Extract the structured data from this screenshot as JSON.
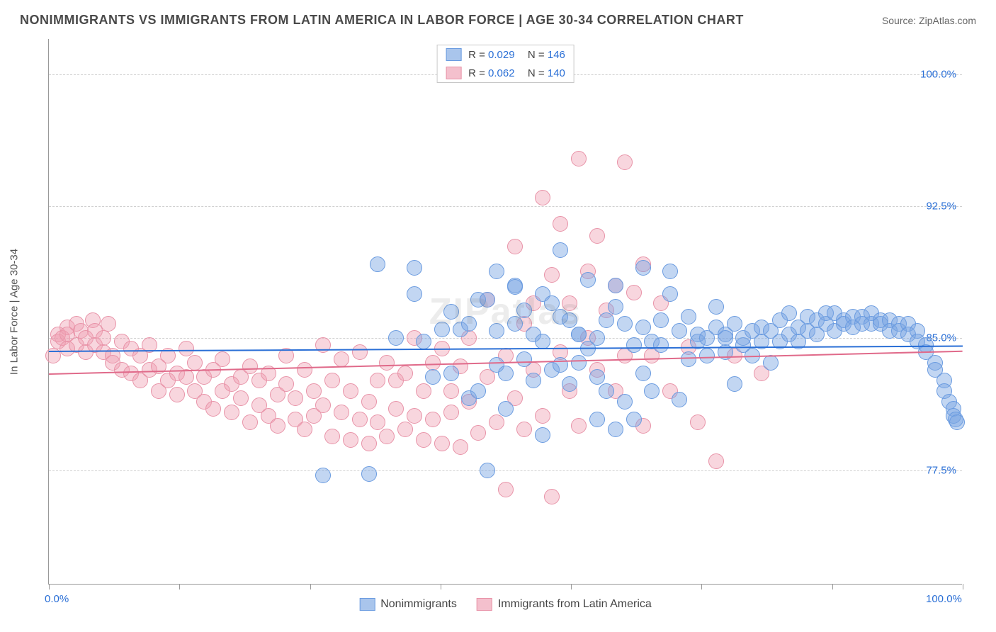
{
  "title": "NONIMMIGRANTS VS IMMIGRANTS FROM LATIN AMERICA IN LABOR FORCE | AGE 30-34 CORRELATION CHART",
  "source_label": "Source: ",
  "source_name": "ZipAtlas.com",
  "watermark": "ZIPatlas",
  "y_axis_label": "In Labor Force | Age 30-34",
  "chart": {
    "type": "scatter",
    "background_color": "#ffffff",
    "grid_color": "#d0d0d0",
    "axis_color": "#999999",
    "xlim": [
      0,
      100
    ],
    "ylim": [
      71,
      102
    ],
    "y_ticks": [
      {
        "v": 77.5,
        "label": "77.5%"
      },
      {
        "v": 85.0,
        "label": "85.0%"
      },
      {
        "v": 92.5,
        "label": "92.5%"
      },
      {
        "v": 100.0,
        "label": "100.0%"
      }
    ],
    "x_ticks_major": [
      0,
      100
    ],
    "x_tick_labels": [
      {
        "v": 0,
        "label": "0.0%"
      },
      {
        "v": 100,
        "label": "100.0%"
      }
    ],
    "x_ticks_minor": [
      14.3,
      28.6,
      42.9,
      57.1,
      71.4,
      85.7
    ],
    "tick_label_color": "#2a6fd6",
    "tick_label_fontsize": 15,
    "series": [
      {
        "name": "Nonimmigrants",
        "fill_color": "rgba(120,163,226,0.45)",
        "stroke_color": "#6a9be0",
        "swatch_fill": "#a9c5ec",
        "swatch_border": "#6a9be0",
        "trend_color": "#2a6fd6",
        "trend": {
          "y_start": 84.3,
          "y_end": 84.6
        },
        "R": "0.029",
        "N": "146",
        "marker_radius": 11,
        "points": [
          [
            30,
            77.2
          ],
          [
            35,
            77.3
          ],
          [
            36,
            89.2
          ],
          [
            38,
            85.0
          ],
          [
            40,
            87.5
          ],
          [
            40,
            89.0
          ],
          [
            41,
            84.8
          ],
          [
            42,
            82.8
          ],
          [
            43,
            85.5
          ],
          [
            44,
            83.0
          ],
          [
            44,
            86.5
          ],
          [
            45,
            85.5
          ],
          [
            46,
            85.8
          ],
          [
            46,
            81.6
          ],
          [
            47,
            82.0
          ],
          [
            47,
            87.2
          ],
          [
            48,
            87.2
          ],
          [
            48,
            77.5
          ],
          [
            49,
            83.5
          ],
          [
            49,
            88.8
          ],
          [
            49,
            85.4
          ],
          [
            50,
            83.0
          ],
          [
            50,
            81.0
          ],
          [
            51,
            85.8
          ],
          [
            51,
            88.0
          ],
          [
            51,
            87.9
          ],
          [
            52,
            83.8
          ],
          [
            52,
            86.6
          ],
          [
            53,
            85.2
          ],
          [
            53,
            82.6
          ],
          [
            54,
            79.5
          ],
          [
            54,
            84.8
          ],
          [
            54,
            87.5
          ],
          [
            55,
            87.0
          ],
          [
            55,
            83.2
          ],
          [
            56,
            86.2
          ],
          [
            56,
            83.5
          ],
          [
            56,
            90.0
          ],
          [
            57,
            82.4
          ],
          [
            57,
            86.0
          ],
          [
            58,
            85.2
          ],
          [
            58,
            85.2
          ],
          [
            58,
            83.6
          ],
          [
            59,
            88.3
          ],
          [
            59,
            84.4
          ],
          [
            60,
            80.4
          ],
          [
            60,
            85.0
          ],
          [
            60,
            82.8
          ],
          [
            61,
            82.0
          ],
          [
            61,
            86.0
          ],
          [
            62,
            79.8
          ],
          [
            62,
            88.0
          ],
          [
            62,
            86.8
          ],
          [
            63,
            81.4
          ],
          [
            63,
            85.8
          ],
          [
            64,
            84.6
          ],
          [
            64,
            80.4
          ],
          [
            65,
            85.6
          ],
          [
            65,
            83.0
          ],
          [
            65,
            89.0
          ],
          [
            66,
            82.0
          ],
          [
            66,
            84.8
          ],
          [
            67,
            84.6
          ],
          [
            67,
            86.0
          ],
          [
            68,
            87.5
          ],
          [
            68,
            88.8
          ],
          [
            69,
            85.4
          ],
          [
            69,
            81.5
          ],
          [
            70,
            83.8
          ],
          [
            70,
            86.2
          ],
          [
            71,
            84.8
          ],
          [
            71,
            85.2
          ],
          [
            72,
            85.0
          ],
          [
            72,
            84.0
          ],
          [
            73,
            85.6
          ],
          [
            73,
            86.8
          ],
          [
            74,
            85.2
          ],
          [
            74,
            84.2
          ],
          [
            74,
            85.0
          ],
          [
            75,
            82.4
          ],
          [
            75,
            85.8
          ],
          [
            76,
            84.6
          ],
          [
            76,
            85.0
          ],
          [
            77,
            85.4
          ],
          [
            77,
            84.0
          ],
          [
            78,
            84.8
          ],
          [
            78,
            85.6
          ],
          [
            79,
            85.4
          ],
          [
            79,
            83.6
          ],
          [
            80,
            86.0
          ],
          [
            80,
            84.8
          ],
          [
            81,
            85.2
          ],
          [
            81,
            86.4
          ],
          [
            82,
            84.8
          ],
          [
            82,
            85.6
          ],
          [
            83,
            85.4
          ],
          [
            83,
            86.2
          ],
          [
            84,
            86.0
          ],
          [
            84,
            85.2
          ],
          [
            85,
            85.8
          ],
          [
            85,
            86.4
          ],
          [
            86,
            85.4
          ],
          [
            86,
            86.4
          ],
          [
            87,
            86.0
          ],
          [
            87,
            85.8
          ],
          [
            88,
            86.2
          ],
          [
            88,
            85.6
          ],
          [
            89,
            86.2
          ],
          [
            89,
            85.8
          ],
          [
            90,
            86.4
          ],
          [
            90,
            85.8
          ],
          [
            91,
            86.0
          ],
          [
            91,
            85.8
          ],
          [
            92,
            86.0
          ],
          [
            92,
            85.4
          ],
          [
            93,
            85.8
          ],
          [
            93,
            85.4
          ],
          [
            94,
            85.8
          ],
          [
            94,
            85.2
          ],
          [
            95,
            85.4
          ],
          [
            95,
            84.8
          ],
          [
            96,
            84.6
          ],
          [
            96,
            84.2
          ],
          [
            97,
            83.6
          ],
          [
            97,
            83.2
          ],
          [
            98,
            82.6
          ],
          [
            98,
            82.0
          ],
          [
            98.5,
            81.4
          ],
          [
            99,
            81.0
          ],
          [
            99,
            80.6
          ],
          [
            99.2,
            80.4
          ],
          [
            99.4,
            80.2
          ]
        ]
      },
      {
        "name": "Immigrants from Latin America",
        "fill_color": "rgba(238,158,176,0.42)",
        "stroke_color": "#e893a8",
        "swatch_fill": "#f4c0cd",
        "swatch_border": "#e893a8",
        "trend_color": "#e06a8a",
        "trend": {
          "y_start": 83.0,
          "y_end": 84.3
        },
        "R": "0.062",
        "N": "140",
        "marker_radius": 11,
        "points": [
          [
            0.5,
            84.0
          ],
          [
            1,
            84.8
          ],
          [
            1,
            85.2
          ],
          [
            1.5,
            85.0
          ],
          [
            2,
            85.6
          ],
          [
            2,
            85.2
          ],
          [
            2,
            84.4
          ],
          [
            3,
            85.8
          ],
          [
            3,
            84.6
          ],
          [
            3.5,
            85.4
          ],
          [
            4,
            85.0
          ],
          [
            4,
            84.2
          ],
          [
            4.8,
            86.0
          ],
          [
            5,
            85.4
          ],
          [
            5,
            84.6
          ],
          [
            6,
            85.0
          ],
          [
            6,
            84.2
          ],
          [
            6.5,
            85.8
          ],
          [
            7,
            84.0
          ],
          [
            7,
            83.6
          ],
          [
            8,
            84.8
          ],
          [
            8,
            83.2
          ],
          [
            9,
            84.4
          ],
          [
            9,
            83.0
          ],
          [
            10,
            84.0
          ],
          [
            10,
            82.6
          ],
          [
            11,
            84.6
          ],
          [
            11,
            83.2
          ],
          [
            12,
            83.4
          ],
          [
            12,
            82.0
          ],
          [
            13,
            84.0
          ],
          [
            13,
            82.6
          ],
          [
            14,
            83.0
          ],
          [
            14,
            81.8
          ],
          [
            15,
            84.4
          ],
          [
            15,
            82.8
          ],
          [
            16,
            82.0
          ],
          [
            16,
            83.6
          ],
          [
            17,
            81.4
          ],
          [
            17,
            82.8
          ],
          [
            18,
            83.2
          ],
          [
            18,
            81.0
          ],
          [
            19,
            82.0
          ],
          [
            19,
            83.8
          ],
          [
            20,
            80.8
          ],
          [
            20,
            82.4
          ],
          [
            21,
            81.6
          ],
          [
            21,
            82.8
          ],
          [
            22,
            80.2
          ],
          [
            22,
            83.4
          ],
          [
            23,
            81.2
          ],
          [
            23,
            82.6
          ],
          [
            24,
            80.6
          ],
          [
            24,
            83.0
          ],
          [
            25,
            81.8
          ],
          [
            25,
            80.0
          ],
          [
            26,
            82.4
          ],
          [
            26,
            84.0
          ],
          [
            27,
            80.4
          ],
          [
            27,
            81.6
          ],
          [
            28,
            83.2
          ],
          [
            28,
            79.8
          ],
          [
            29,
            82.0
          ],
          [
            29,
            80.6
          ],
          [
            30,
            81.2
          ],
          [
            30,
            84.6
          ],
          [
            31,
            79.4
          ],
          [
            31,
            82.6
          ],
          [
            32,
            80.8
          ],
          [
            32,
            83.8
          ],
          [
            33,
            79.2
          ],
          [
            33,
            82.0
          ],
          [
            34,
            80.4
          ],
          [
            34,
            84.2
          ],
          [
            35,
            81.4
          ],
          [
            35,
            79.0
          ],
          [
            36,
            82.6
          ],
          [
            36,
            80.2
          ],
          [
            37,
            83.6
          ],
          [
            37,
            79.4
          ],
          [
            38,
            81.0
          ],
          [
            38,
            82.6
          ],
          [
            39,
            79.8
          ],
          [
            39,
            83.0
          ],
          [
            40,
            80.6
          ],
          [
            40,
            85.0
          ],
          [
            41,
            79.2
          ],
          [
            41,
            82.0
          ],
          [
            42,
            83.6
          ],
          [
            42,
            80.4
          ],
          [
            43,
            79.0
          ],
          [
            43,
            84.4
          ],
          [
            44,
            82.0
          ],
          [
            44,
            80.8
          ],
          [
            45,
            78.8
          ],
          [
            45,
            83.4
          ],
          [
            46,
            81.4
          ],
          [
            46,
            85.0
          ],
          [
            47,
            79.6
          ],
          [
            48,
            87.2
          ],
          [
            48,
            82.8
          ],
          [
            49,
            80.2
          ],
          [
            50,
            76.4
          ],
          [
            50,
            84.0
          ],
          [
            51,
            90.2
          ],
          [
            51,
            81.6
          ],
          [
            52,
            85.8
          ],
          [
            52,
            79.8
          ],
          [
            53,
            87.0
          ],
          [
            53,
            83.2
          ],
          [
            54,
            93.0
          ],
          [
            54,
            80.6
          ],
          [
            55,
            76.0
          ],
          [
            55,
            88.6
          ],
          [
            56,
            84.2
          ],
          [
            56,
            91.5
          ],
          [
            57,
            82.0
          ],
          [
            57,
            87.0
          ],
          [
            58,
            95.2
          ],
          [
            58,
            80.0
          ],
          [
            59,
            88.8
          ],
          [
            59,
            85.0
          ],
          [
            60,
            83.2
          ],
          [
            60,
            90.8
          ],
          [
            61,
            86.6
          ],
          [
            62,
            88.0
          ],
          [
            62,
            82.0
          ],
          [
            63,
            95.0
          ],
          [
            63,
            84.0
          ],
          [
            64,
            87.6
          ],
          [
            65,
            80.0
          ],
          [
            65,
            89.2
          ],
          [
            66,
            84.0
          ],
          [
            67,
            87.0
          ],
          [
            68,
            82.0
          ],
          [
            70,
            84.5
          ],
          [
            71,
            80.2
          ],
          [
            73,
            78.0
          ],
          [
            75,
            84.0
          ],
          [
            78,
            83.0
          ]
        ]
      }
    ],
    "legend_top": {
      "R_label": "R =",
      "N_label": "N ="
    },
    "legend_bottom": [
      {
        "label": "Nonimmigrants"
      },
      {
        "label": "Immigrants from Latin America"
      }
    ]
  }
}
